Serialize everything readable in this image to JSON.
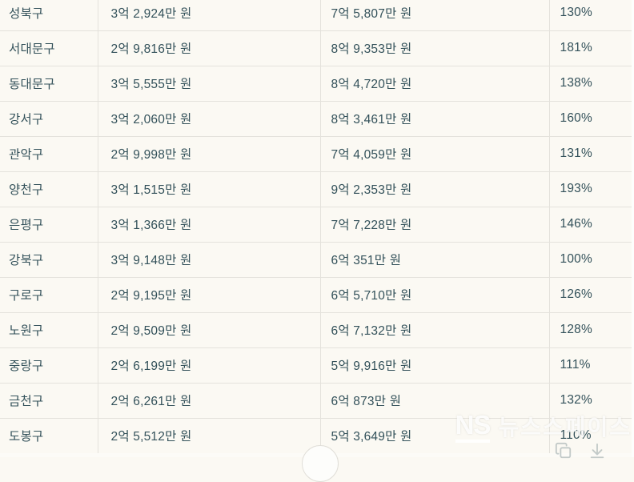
{
  "page": {
    "background_color": "#fbf9f3",
    "text_color": "#33515a",
    "border_color": "#e4e2dc"
  },
  "table": {
    "rows": [
      {
        "district": "성북구",
        "price_a": "3억 2,924만 원",
        "price_b": "7억 5,807만 원",
        "ratio": "130%"
      },
      {
        "district": "서대문구",
        "price_a": "2억 9,816만 원",
        "price_b": "8억 9,353만 원",
        "ratio": "181%"
      },
      {
        "district": "동대문구",
        "price_a": "3억 5,555만 원",
        "price_b": "8억 4,720만 원",
        "ratio": "138%"
      },
      {
        "district": "강서구",
        "price_a": "3억 2,060만 원",
        "price_b": "8억 3,461만 원",
        "ratio": "160%"
      },
      {
        "district": "관악구",
        "price_a": "2억 9,998만 원",
        "price_b": "7억 4,059만 원",
        "ratio": "131%"
      },
      {
        "district": "양천구",
        "price_a": "3억 1,515만 원",
        "price_b": "9억 2,353만 원",
        "ratio": "193%"
      },
      {
        "district": "은평구",
        "price_a": "3억 1,366만 원",
        "price_b": "7억 7,228만 원",
        "ratio": "146%"
      },
      {
        "district": "강북구",
        "price_a": "3억 9,148만 원",
        "price_b": "6억 351만 원",
        "ratio": "100%"
      },
      {
        "district": "구로구",
        "price_a": "2억 9,195만 원",
        "price_b": "6억 5,710만 원",
        "ratio": "126%"
      },
      {
        "district": "노원구",
        "price_a": "2억 9,509만 원",
        "price_b": "6억 7,132만 원",
        "ratio": "128%"
      },
      {
        "district": "중랑구",
        "price_a": "2억 6,199만 원",
        "price_b": "5억 9,916만 원",
        "ratio": "111%"
      },
      {
        "district": "금천구",
        "price_a": "2억 6,261만 원",
        "price_b": "6억 873만 원",
        "ratio": "132%"
      },
      {
        "district": "도봉구",
        "price_a": "2억 5,512만 원",
        "price_b": "5억 3,649만 원",
        "ratio": "110%"
      }
    ]
  },
  "watermark": {
    "logo": "NS",
    "name": "뉴스스페이스"
  },
  "floating_icons": [
    {
      "name": "copy-icon"
    },
    {
      "name": "download-icon"
    }
  ]
}
